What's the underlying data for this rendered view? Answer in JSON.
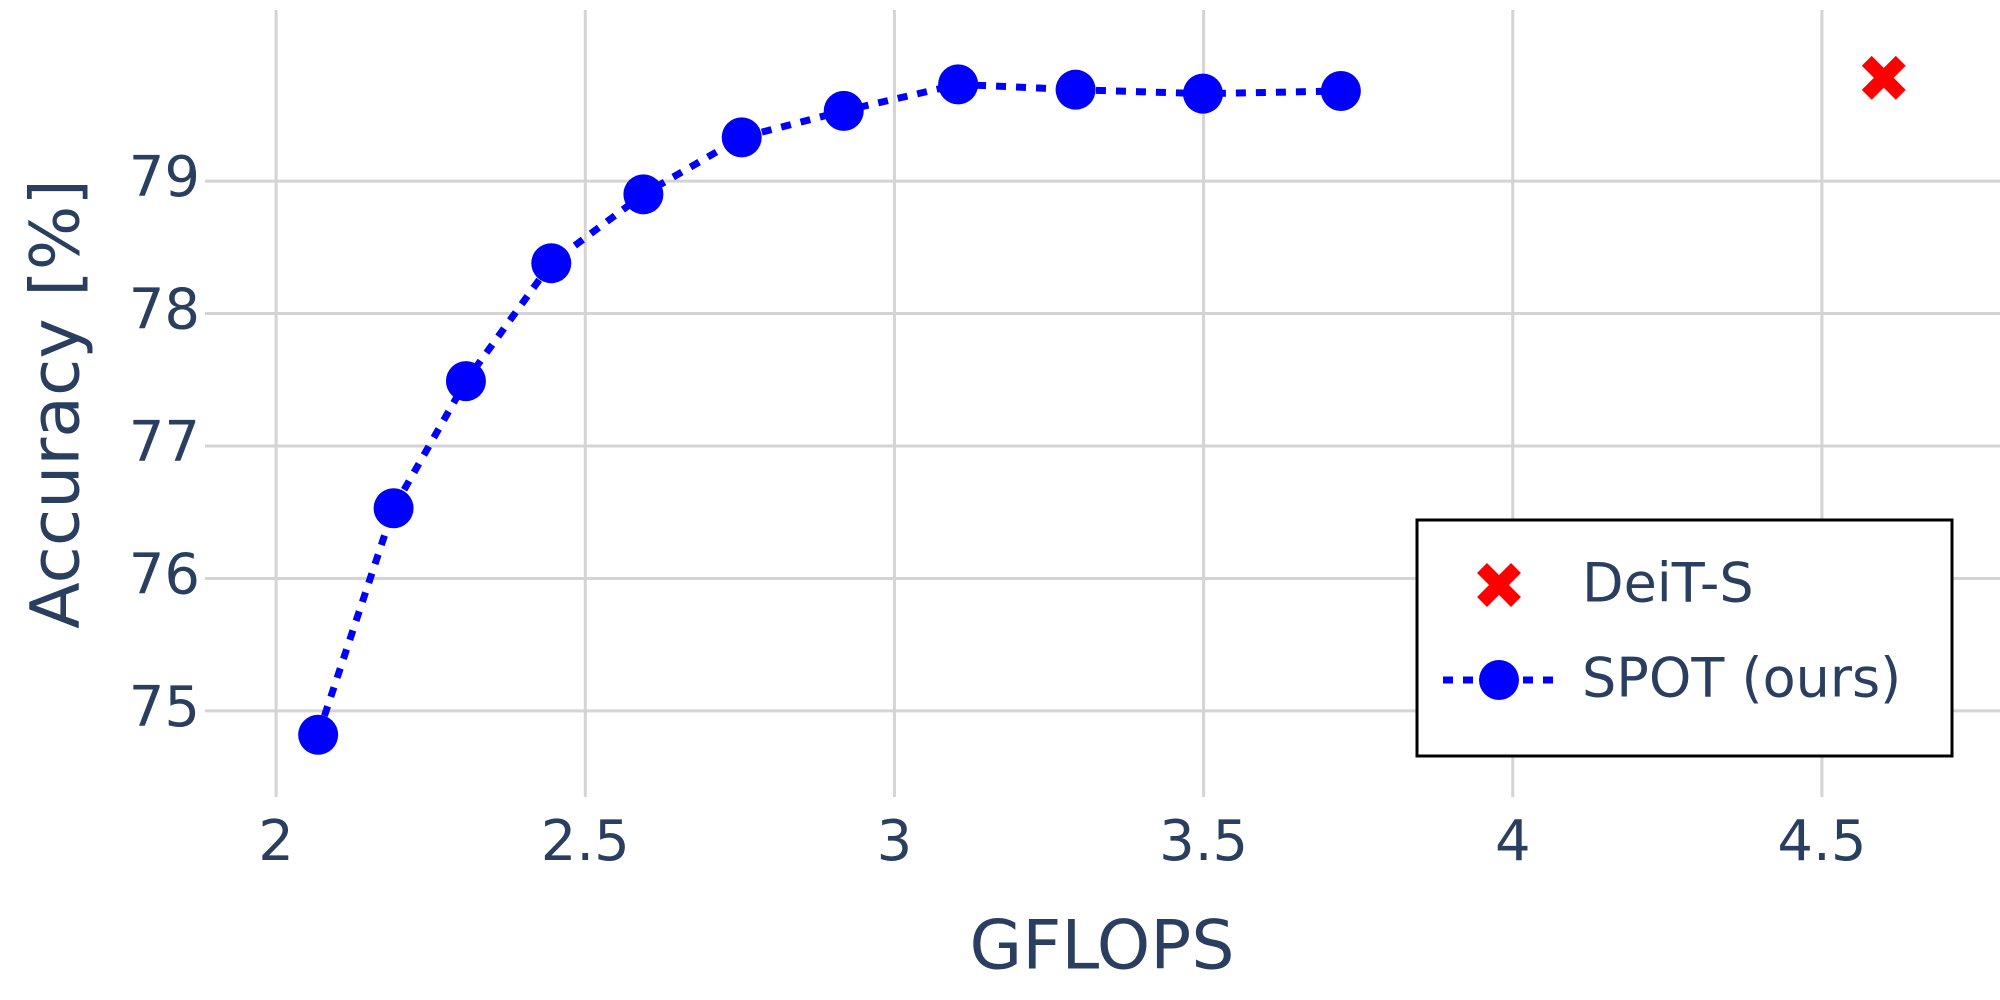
{
  "chart_data": {
    "type": "scatter",
    "xlabel": "GFLOPS",
    "ylabel": "Accuracy [%]",
    "xlim": [
      1.885,
      4.788
    ],
    "ylim": [
      74.35,
      80.05
    ],
    "xticks": [
      2,
      2.5,
      3,
      3.5,
      4,
      4.5
    ],
    "yticks": [
      75,
      76,
      77,
      78,
      79
    ],
    "grid": true,
    "legend": "lower right",
    "series": [
      {
        "name": "DeiT-S",
        "color": "#ff0000",
        "marker": "x",
        "line": "none",
        "x": [
          4.6
        ],
        "values": [
          79.78
        ]
      },
      {
        "name": "SPOT (ours)",
        "color": "#0000ff",
        "marker": "circle",
        "line": "dot",
        "x": [
          2.068,
          2.19,
          2.307,
          2.445,
          2.594,
          2.753,
          2.918,
          3.103,
          3.293,
          3.499,
          3.722
        ],
        "values": [
          74.82,
          76.53,
          77.49,
          78.38,
          78.9,
          79.33,
          79.53,
          79.73,
          79.69,
          79.66,
          79.68
        ]
      }
    ]
  }
}
